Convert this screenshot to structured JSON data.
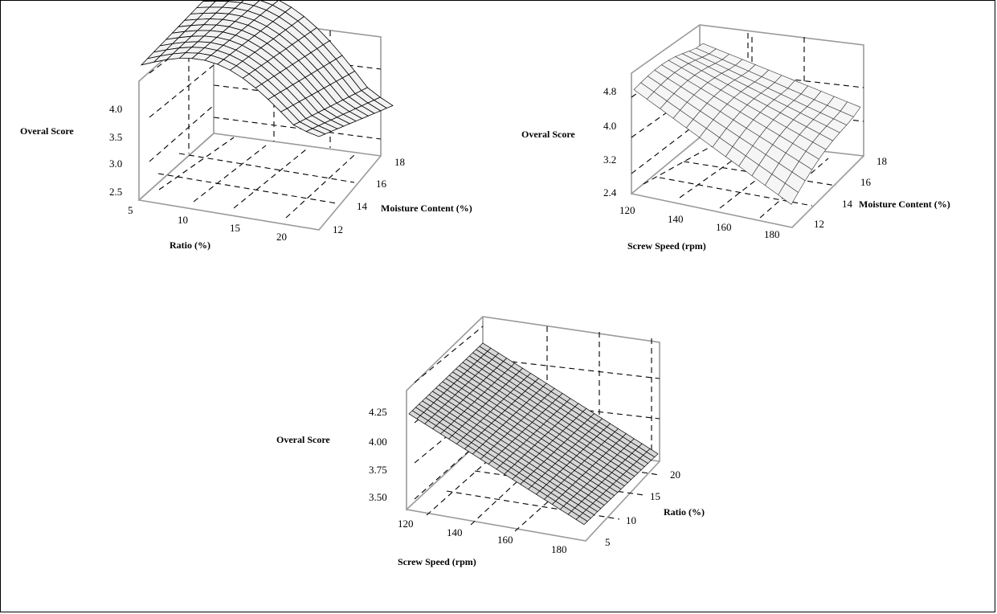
{
  "chart_data": [
    {
      "type": "surface",
      "zlabel": "Overal Score",
      "xlabel": "Ratio (%)",
      "ylabel": "Moisture Content (%)",
      "x_ticks": [
        "5",
        "10",
        "15",
        "20"
      ],
      "y_ticks": [
        "12",
        "14",
        "16",
        "18"
      ],
      "z_ticks": [
        "2.5",
        "3.0",
        "3.5",
        "4.0"
      ],
      "xlim": [
        5,
        23
      ],
      "ylim": [
        11,
        18.5
      ],
      "zlim": [
        2.3,
        4.6
      ],
      "surface": {
        "x": [
          5,
          23
        ],
        "y": [
          11,
          18.5
        ],
        "z_corners": [
          [
            4.2,
            4.35
          ],
          [
            3.6,
            3.1
          ]
        ],
        "ridge_along": "y",
        "ridge_height": 0.45,
        "grid": [
          14,
          12
        ]
      }
    },
    {
      "type": "surface",
      "zlabel": "Overal Score",
      "xlabel": "Screw Speed (rpm)",
      "ylabel": "Moisture Content (%)",
      "x_ticks": [
        "120",
        "140",
        "160",
        "180"
      ],
      "y_ticks": [
        "12",
        "14",
        "16",
        "18"
      ],
      "z_ticks": [
        "2.4",
        "3.2",
        "4.0",
        "4.8"
      ],
      "xlim": [
        118,
        185
      ],
      "ylim": [
        11,
        18.5
      ],
      "zlim": [
        2.4,
        5.6
      ],
      "surface": {
        "x": [
          118,
          185
        ],
        "y": [
          11,
          18.5
        ],
        "z_corners": [
          [
            4.8,
            4.6
          ],
          [
            2.9,
            3.9
          ]
        ],
        "ridge_along": "x",
        "ridge_height": 0.15,
        "grid": [
          12,
          10
        ]
      }
    },
    {
      "type": "surface",
      "zlabel": "Overal Score",
      "xlabel": "Screw Speed (rpm)",
      "ylabel": "Ratio (%)",
      "x_ticks": [
        "120",
        "140",
        "160",
        "180"
      ],
      "y_ticks": [
        "5",
        "10",
        "15",
        "20"
      ],
      "z_ticks": [
        "3.50",
        "3.75",
        "4.00",
        "4.25"
      ],
      "xlim": [
        118,
        185
      ],
      "ylim": [
        3,
        22
      ],
      "zlim": [
        3.4,
        4.75
      ],
      "surface": {
        "x": [
          118,
          185
        ],
        "y": [
          3,
          22
        ],
        "z_corners": [
          [
            4.35,
            4.35
          ],
          [
            3.55,
            3.55
          ]
        ],
        "ridge_along": "y",
        "ridge_height": 0,
        "grid": [
          22,
          22
        ]
      }
    }
  ]
}
